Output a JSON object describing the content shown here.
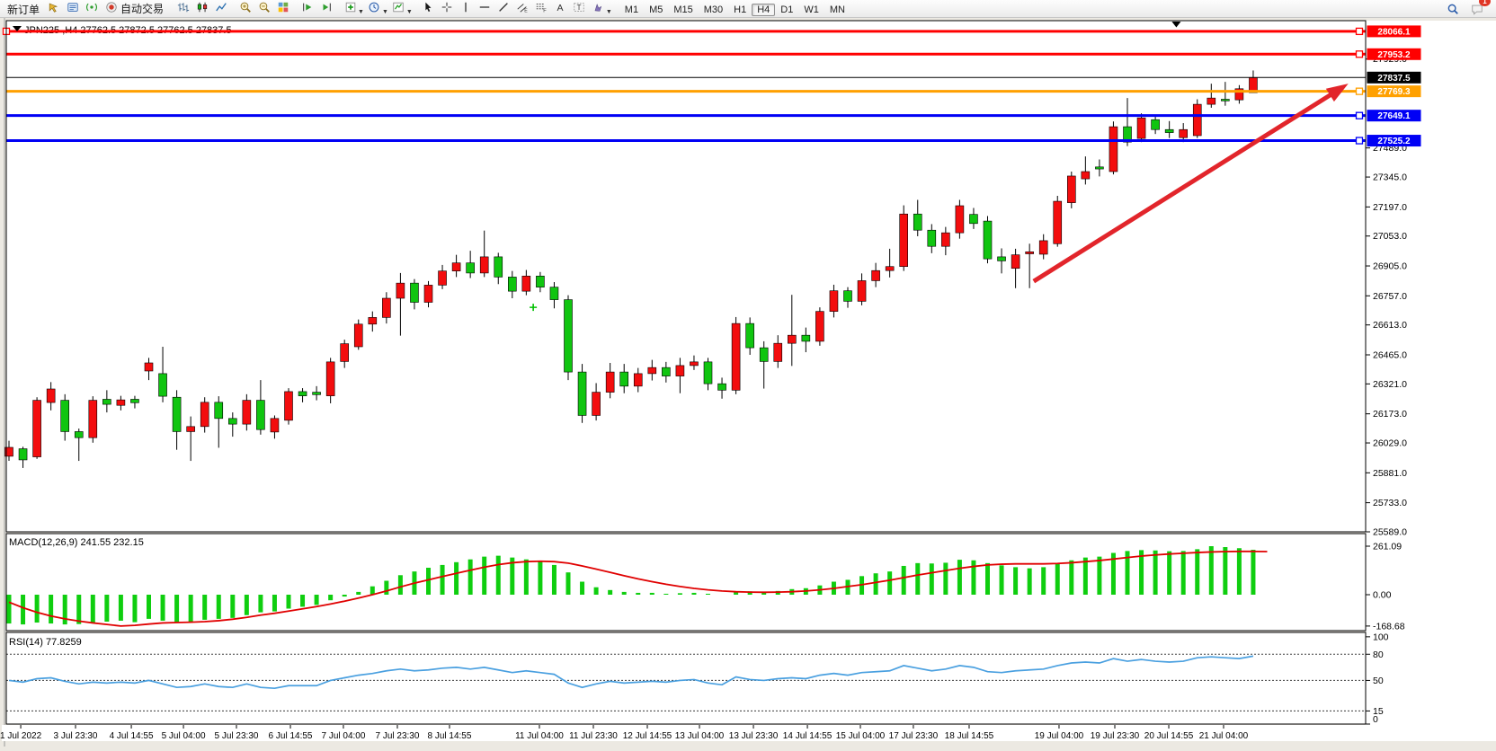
{
  "toolbar": {
    "new_order_label": "新订单",
    "autotrading_label": "自动交易",
    "items": [
      {
        "kind": "labelbtn",
        "name": "new-order",
        "label_key": "new_order_label"
      },
      {
        "kind": "icon",
        "name": "favorites"
      },
      {
        "kind": "icon",
        "name": "data-window"
      },
      {
        "kind": "icon",
        "name": "signal"
      },
      {
        "kind": "labelbtn",
        "name": "autotrading",
        "icon": "autotrading",
        "label_key": "autotrading_label"
      },
      {
        "kind": "sep"
      },
      {
        "kind": "icon",
        "name": "bar-chart"
      },
      {
        "kind": "icon",
        "name": "candlestick-chart"
      },
      {
        "kind": "icon",
        "name": "line-chart"
      },
      {
        "kind": "sep"
      },
      {
        "kind": "icon",
        "name": "zoom-in"
      },
      {
        "kind": "icon",
        "name": "zoom-out"
      },
      {
        "kind": "icon",
        "name": "tile-windows"
      },
      {
        "kind": "sep"
      },
      {
        "kind": "icon",
        "name": "auto-scroll"
      },
      {
        "kind": "icon",
        "name": "chart-shift"
      },
      {
        "kind": "sep"
      },
      {
        "kind": "icon",
        "name": "new-chart",
        "caret": true
      },
      {
        "kind": "icon",
        "name": "periods",
        "caret": true
      },
      {
        "kind": "icon",
        "name": "indicators",
        "caret": true
      },
      {
        "kind": "sep"
      },
      {
        "kind": "icon",
        "name": "cursor"
      },
      {
        "kind": "icon",
        "name": "crosshair"
      },
      {
        "kind": "icon",
        "name": "vertical-line"
      },
      {
        "kind": "icon",
        "name": "horizontal-line"
      },
      {
        "kind": "icon",
        "name": "trendline"
      },
      {
        "kind": "icon",
        "name": "equidistant-channel"
      },
      {
        "kind": "icon",
        "name": "fibonacci"
      },
      {
        "kind": "icon",
        "name": "text"
      },
      {
        "kind": "icon",
        "name": "text-label"
      },
      {
        "kind": "icon",
        "name": "arrow-objects",
        "caret": true
      },
      {
        "kind": "sep"
      }
    ],
    "timeframes": [
      "M1",
      "M5",
      "M15",
      "M30",
      "H1",
      "H4",
      "D1",
      "W1",
      "MN"
    ],
    "active_timeframe": "H4",
    "notification_count": "1"
  },
  "chart_data": {
    "type": "candlestick",
    "symbol": "JPN225",
    "period": "H4",
    "title": "JPN225 ,H4  27762.5 27872.5 27762.5 27837.5",
    "ohlc": {
      "open": 27762.5,
      "high": 27872.5,
      "low": 27762.5,
      "close": 27837.5
    },
    "colors": {
      "bull": "#f30d0e",
      "bear": "#10c510",
      "macd_hist": "#0fce0f",
      "macd_signal": "#e00000",
      "rsi_line": "#4aa0e0",
      "line_red": "#ff0000",
      "line_blue": "#0000f5",
      "line_orange": "#ffa000",
      "line_black": "#000000",
      "arrow": "#e2252b"
    },
    "main": {
      "ylim": [
        25589,
        28119
      ],
      "y_ticks": [
        27929,
        27489,
        27345,
        27197,
        27053,
        26905,
        26757,
        26613,
        26465,
        26321,
        26173,
        26029,
        25881,
        25733,
        25589
      ],
      "hlines": [
        {
          "price": 28066.1,
          "color": "#ff0000",
          "width": 3,
          "handles": [
            "left",
            "right"
          ]
        },
        {
          "price": 27953.2,
          "color": "#ff0000",
          "width": 3,
          "handles": [
            "right"
          ]
        },
        {
          "price": 27769.3,
          "color": "#ffa000",
          "width": 3,
          "handles": [
            "right"
          ]
        },
        {
          "price": 27649.1,
          "color": "#0000f5",
          "width": 3,
          "handles": [
            "right"
          ]
        },
        {
          "price": 27525.2,
          "color": "#0000f5",
          "width": 3,
          "handles": [
            "right"
          ]
        }
      ],
      "price_line": {
        "price": 27837.5,
        "color": "#000000",
        "width": 1
      },
      "arrow": {
        "x1_bar": 73.3,
        "p1": 26829,
        "x2_bar": 95.8,
        "p2": 27807,
        "color": "#e2252b",
        "width": 5
      },
      "markers": [
        {
          "bar": 37.5,
          "price": 26700,
          "type": "plus",
          "color": "#00c000"
        }
      ],
      "shift_marker_bar": 83.5,
      "candles": [
        [
          25963,
          26040,
          25940,
          26007
        ],
        [
          26000,
          26010,
          25905,
          25945
        ],
        [
          25960,
          26255,
          25950,
          26240
        ],
        [
          26229,
          26330,
          26190,
          26296
        ],
        [
          26240,
          26270,
          26040,
          26085
        ],
        [
          26085,
          26100,
          25940,
          26055
        ],
        [
          26055,
          26260,
          26030,
          26240
        ],
        [
          26245,
          26290,
          26180,
          26220
        ],
        [
          26215,
          26262,
          26190,
          26242
        ],
        [
          26245,
          26262,
          26200,
          26228
        ],
        [
          26385,
          26450,
          26340,
          26425
        ],
        [
          26372,
          26505,
          26230,
          26260
        ],
        [
          26255,
          26290,
          25995,
          26085
        ],
        [
          26085,
          26160,
          25940,
          26110
        ],
        [
          26110,
          26255,
          26080,
          26230
        ],
        [
          26230,
          26260,
          26005,
          26150
        ],
        [
          26150,
          26180,
          26060,
          26122
        ],
        [
          26122,
          26270,
          26090,
          26240
        ],
        [
          26240,
          26340,
          26070,
          26095
        ],
        [
          26083,
          26165,
          26050,
          26150
        ],
        [
          26141,
          26300,
          26120,
          26283
        ],
        [
          26283,
          26300,
          26230,
          26262
        ],
        [
          26280,
          26310,
          26240,
          26268
        ],
        [
          26262,
          26450,
          26225,
          26430
        ],
        [
          26432,
          26540,
          26400,
          26520
        ],
        [
          26505,
          26640,
          26490,
          26617
        ],
        [
          26617,
          26680,
          26580,
          26650
        ],
        [
          26650,
          26775,
          26620,
          26745
        ],
        [
          26745,
          26870,
          26560,
          26820
        ],
        [
          26820,
          26840,
          26690,
          26725
        ],
        [
          26725,
          26830,
          26700,
          26810
        ],
        [
          26810,
          26910,
          26790,
          26880
        ],
        [
          26880,
          26960,
          26850,
          26920
        ],
        [
          26920,
          26980,
          26845,
          26870
        ],
        [
          26870,
          27080,
          26850,
          26950
        ],
        [
          26950,
          26970,
          26815,
          26850
        ],
        [
          26850,
          26880,
          26745,
          26780
        ],
        [
          26780,
          26885,
          26760,
          26855
        ],
        [
          26855,
          26875,
          26775,
          26800
        ],
        [
          26800,
          26825,
          26695,
          26738
        ],
        [
          26738,
          26760,
          26340,
          26380
        ],
        [
          26380,
          26420,
          26128,
          26165
        ],
        [
          26165,
          26325,
          26140,
          26280
        ],
        [
          26280,
          26425,
          26250,
          26380
        ],
        [
          26380,
          26420,
          26275,
          26310
        ],
        [
          26310,
          26400,
          26280,
          26372
        ],
        [
          26372,
          26440,
          26338,
          26402
        ],
        [
          26402,
          26430,
          26328,
          26360
        ],
        [
          26360,
          26450,
          26275,
          26412
        ],
        [
          26412,
          26462,
          26390,
          26430
        ],
        [
          26430,
          26450,
          26290,
          26322
        ],
        [
          26322,
          26352,
          26248,
          26290
        ],
        [
          26290,
          26652,
          26270,
          26620
        ],
        [
          26620,
          26650,
          26465,
          26500
        ],
        [
          26500,
          26532,
          26298,
          26432
        ],
        [
          26432,
          26562,
          26400,
          26522
        ],
        [
          26522,
          26762,
          26410,
          26562
        ],
        [
          26562,
          26600,
          26478,
          26532
        ],
        [
          26532,
          26700,
          26510,
          26680
        ],
        [
          26680,
          26812,
          26650,
          26782
        ],
        [
          26782,
          26800,
          26698,
          26730
        ],
        [
          26730,
          26868,
          26710,
          26832
        ],
        [
          26832,
          26920,
          26800,
          26882
        ],
        [
          26882,
          26990,
          26848,
          26902
        ],
        [
          26902,
          27205,
          26880,
          27162
        ],
        [
          27162,
          27232,
          27052,
          27082
        ],
        [
          27082,
          27112,
          26968,
          27002
        ],
        [
          27002,
          27098,
          26958,
          27069
        ],
        [
          27069,
          27232,
          27040,
          27203
        ],
        [
          27160,
          27192,
          27088,
          27115
        ],
        [
          27127,
          27152,
          26918,
          26940
        ],
        [
          26950,
          26992,
          26868,
          26930
        ],
        [
          26893,
          26990,
          26795,
          26960
        ],
        [
          26965,
          27015,
          26795,
          26975
        ],
        [
          26963,
          27062,
          26938,
          27030
        ],
        [
          27015,
          27252,
          27000,
          27225
        ],
        [
          27218,
          27372,
          27190,
          27350
        ],
        [
          27336,
          27447,
          27308,
          27372
        ],
        [
          27395,
          27432,
          27348,
          27385
        ],
        [
          27372,
          27620,
          27358,
          27594
        ],
        [
          27594,
          27736,
          27498,
          27518
        ],
        [
          27536,
          27660,
          27518,
          27638
        ],
        [
          27629,
          27652,
          27558,
          27580
        ],
        [
          27580,
          27622,
          27538,
          27565
        ],
        [
          27540,
          27612,
          27518,
          27580
        ],
        [
          27550,
          27730,
          27538,
          27705
        ],
        [
          27705,
          27807,
          27688,
          27736
        ],
        [
          27730,
          27816,
          27698,
          27722
        ],
        [
          27727,
          27800,
          27708,
          27782
        ],
        [
          27762.5,
          27872.5,
          27762.5,
          27837.5
        ]
      ]
    },
    "macd": {
      "label": "MACD(12,26,9) 241.55 232.15",
      "params": "12,26,9",
      "value": 241.55,
      "signal_value": 232.15,
      "ylim": [
        -193.4,
        328.8
      ],
      "y_ticks": [
        261.09,
        0,
        -168.68
      ],
      "histogram": [
        -155,
        -160,
        -150,
        -155,
        -160,
        -158,
        -150,
        -145,
        -140,
        -148,
        -130,
        -140,
        -150,
        -145,
        -135,
        -130,
        -125,
        -110,
        -95,
        -90,
        -75,
        -65,
        -55,
        -30,
        -10,
        15,
        45,
        75,
        105,
        125,
        145,
        160,
        175,
        190,
        205,
        210,
        200,
        190,
        180,
        160,
        120,
        70,
        40,
        25,
        15,
        10,
        10,
        5,
        8,
        10,
        5,
        0,
        15,
        18,
        15,
        20,
        30,
        35,
        50,
        70,
        80,
        100,
        115,
        125,
        155,
        170,
        168,
        172,
        188,
        185,
        170,
        158,
        148,
        142,
        148,
        165,
        185,
        200,
        205,
        225,
        235,
        240,
        238,
        234,
        235,
        245,
        261.09,
        256,
        250,
        241.55
      ],
      "signal": [
        -40,
        -70,
        -95,
        -115,
        -130,
        -142,
        -152,
        -160,
        -168.68,
        -165,
        -158,
        -152,
        -150,
        -148,
        -145,
        -140,
        -132,
        -122,
        -110,
        -100,
        -88,
        -76,
        -64,
        -50,
        -35,
        -18,
        0,
        20,
        42,
        62,
        80,
        98,
        115,
        132,
        148,
        162,
        172,
        178,
        180,
        178,
        170,
        155,
        138,
        120,
        102,
        85,
        70,
        56,
        44,
        34,
        26,
        20,
        16,
        14,
        13,
        14,
        16,
        20,
        26,
        34,
        44,
        54,
        66,
        78,
        92,
        106,
        118,
        130,
        142,
        152,
        160,
        164,
        166,
        166,
        166,
        168,
        172,
        178,
        184,
        192,
        200,
        208,
        214,
        219,
        223,
        227,
        230,
        232,
        233,
        233,
        232.15
      ]
    },
    "rsi": {
      "label": "RSI(14) 77.8259",
      "period": 14,
      "value": 77.8259,
      "ylim": [
        0,
        105
      ],
      "levels": [
        80,
        50,
        15
      ],
      "y_ticks": [
        100,
        80,
        50,
        15,
        0
      ],
      "values": [
        50,
        48,
        52,
        53,
        49,
        46,
        48,
        47,
        48,
        47,
        50,
        46,
        42,
        43,
        46,
        43,
        42,
        46,
        42,
        41,
        44,
        44,
        44,
        50,
        53,
        56,
        58,
        61,
        63,
        61,
        62,
        64,
        65,
        63,
        65,
        62,
        59,
        61,
        59,
        57,
        47,
        42,
        46,
        49,
        47,
        48,
        49,
        48,
        50,
        51,
        47,
        45,
        54,
        51,
        50,
        52,
        53,
        52,
        56,
        58,
        56,
        59,
        60,
        61,
        67,
        64,
        61,
        63,
        67,
        65,
        60,
        59,
        61,
        62,
        63,
        67,
        70,
        71,
        70,
        75,
        72,
        74,
        72,
        71,
        72,
        76,
        77,
        76,
        75,
        77.83
      ]
    },
    "x_labels": [
      [
        0.84,
        "1 Jul 2022"
      ],
      [
        4.76,
        "3 Jul 23:30"
      ],
      [
        8.75,
        "4 Jul 14:55"
      ],
      [
        12.48,
        "5 Jul 04:00"
      ],
      [
        16.27,
        "5 Jul 23:30"
      ],
      [
        20.13,
        "6 Jul 14:55"
      ],
      [
        23.92,
        "7 Jul 04:00"
      ],
      [
        27.78,
        "7 Jul 23:30"
      ],
      [
        31.51,
        "8 Jul 14:55"
      ],
      [
        37.94,
        "11 Jul 04:00"
      ],
      [
        41.8,
        "11 Jul 23:30"
      ],
      [
        45.66,
        "12 Jul 14:55"
      ],
      [
        49.39,
        "13 Jul 04:00"
      ],
      [
        53.25,
        "13 Jul 23:30"
      ],
      [
        57.11,
        "14 Jul 14:55"
      ],
      [
        60.9,
        "15 Jul 04:00"
      ],
      [
        64.69,
        "17 Jul 23:30"
      ],
      [
        68.68,
        "18 Jul 14:55"
      ],
      [
        75.11,
        "19 Jul 04:00"
      ],
      [
        79.1,
        "19 Jul 23:30"
      ],
      [
        82.96,
        "20 Jul 14:55"
      ],
      [
        86.88,
        "21 Jul 04:00"
      ]
    ]
  }
}
